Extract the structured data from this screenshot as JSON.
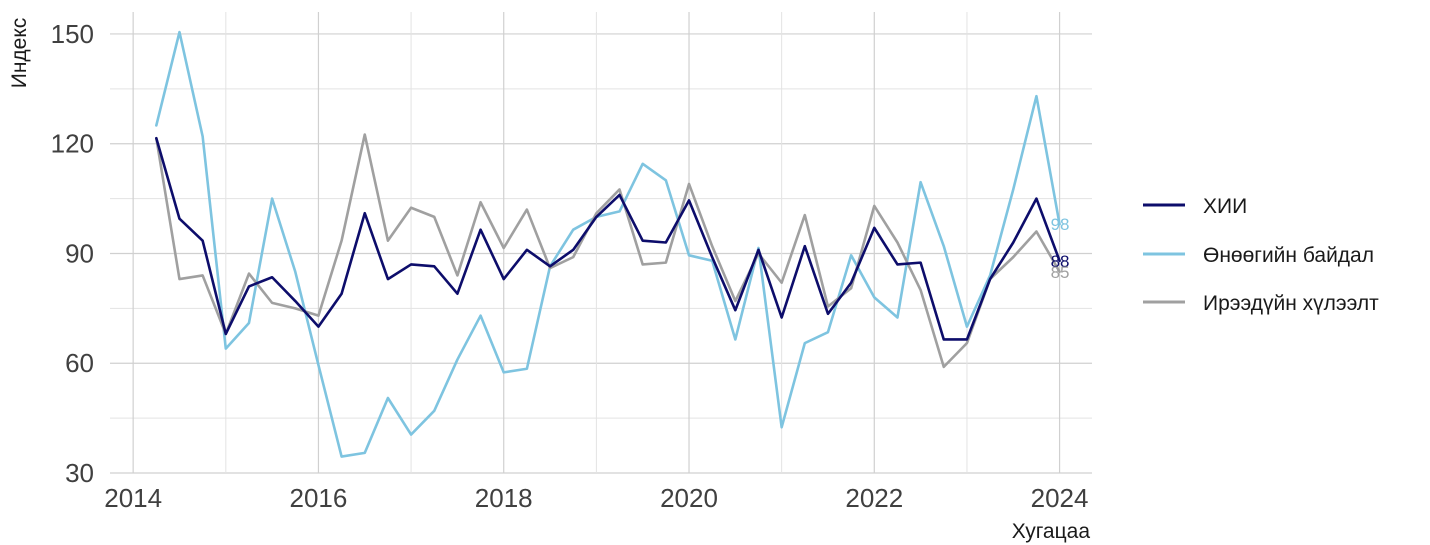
{
  "chart_data": {
    "type": "line",
    "xlabel": "Хугацаа",
    "ylabel": "Индекс",
    "xlim": [
      2013.75,
      2024.35
    ],
    "ylim": [
      30,
      156
    ],
    "x_ticks": [
      2014,
      2016,
      2018,
      2020,
      2022,
      2024
    ],
    "y_ticks": [
      30,
      60,
      90,
      120,
      150
    ],
    "grid": true,
    "legend_position": "right",
    "x": [
      2014.25,
      2014.5,
      2014.75,
      2015.0,
      2015.25,
      2015.5,
      2015.75,
      2016.0,
      2016.25,
      2016.5,
      2016.75,
      2017.0,
      2017.25,
      2017.5,
      2017.75,
      2018.0,
      2018.25,
      2018.5,
      2018.75,
      2019.0,
      2019.25,
      2019.5,
      2019.75,
      2020.0,
      2020.25,
      2020.5,
      2020.75,
      2021.0,
      2021.25,
      2021.5,
      2021.75,
      2022.0,
      2022.25,
      2022.5,
      2022.75,
      2023.0,
      2023.25,
      2023.5,
      2023.75,
      2024.0
    ],
    "series": [
      {
        "name": "ХИИ",
        "color": "#0d0d6b",
        "end_label": "88",
        "values": [
          121.5,
          99.5,
          93.5,
          68,
          81,
          83.5,
          77,
          70,
          79,
          101,
          83,
          87,
          86.5,
          79,
          96.5,
          83,
          91,
          86.5,
          91,
          100,
          106,
          93.5,
          93,
          104.5,
          89,
          74.5,
          91,
          72.5,
          92,
          73.5,
          82,
          97,
          87,
          87.5,
          66.5,
          66.5,
          83,
          93,
          105,
          88
        ]
      },
      {
        "name": "Өнөөгийн байдал",
        "color": "#7ec4e0",
        "end_label": "98",
        "values": [
          125,
          150.5,
          122,
          64,
          71,
          105,
          85,
          59.5,
          34.5,
          35.5,
          50.5,
          40.5,
          47,
          61,
          73,
          57.5,
          58.5,
          86.5,
          96.5,
          100,
          101.5,
          114.5,
          110,
          89.5,
          88,
          66.5,
          91.5,
          42.5,
          65.5,
          68.5,
          89.5,
          78,
          72.5,
          109.5,
          92,
          70,
          84,
          107.5,
          133,
          98
        ]
      },
      {
        "name": "Ирээдүйн хүлээлт",
        "color": "#a0a0a0",
        "end_label": "85",
        "values": [
          121.5,
          83,
          84,
          68,
          84.5,
          76.5,
          75,
          73,
          93.5,
          122.5,
          93.5,
          102.5,
          100,
          84,
          104,
          91.5,
          102,
          86,
          89,
          101,
          107.5,
          87,
          87.5,
          109,
          92,
          77,
          90,
          82,
          100.5,
          75.5,
          80.5,
          103,
          93,
          80,
          59,
          65.5,
          83,
          89,
          96,
          85
        ]
      }
    ]
  }
}
